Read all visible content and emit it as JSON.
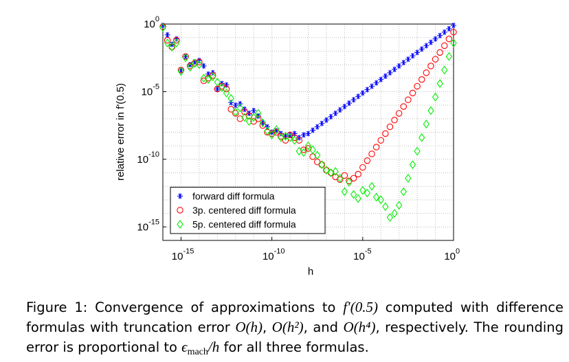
{
  "chart_data": {
    "type": "scatter",
    "xlabel": "h",
    "ylabel": "relative error in f'(0.5)",
    "xscale": "log",
    "yscale": "log",
    "grid": true,
    "legend": "lower left",
    "xlim": [
      1e-16,
      1
    ],
    "ylim": [
      1e-16,
      1
    ],
    "xticks": [
      {
        "value": 1e-15,
        "label": "10",
        "exponent": "-15"
      },
      {
        "value": 1e-10,
        "label": "10",
        "exponent": "-10"
      },
      {
        "value": 1e-05,
        "label": "10",
        "exponent": "-5"
      },
      {
        "value": 1,
        "label": "10",
        "exponent": "0"
      }
    ],
    "yticks": [
      {
        "value": 1e-15,
        "label": "10",
        "exponent": "-15"
      },
      {
        "value": 1e-10,
        "label": "10",
        "exponent": "-10"
      },
      {
        "value": 1e-05,
        "label": "10",
        "exponent": "-5"
      },
      {
        "value": 1,
        "label": "10",
        "exponent": "0"
      }
    ],
    "xgrid": [
      1e-16,
      1e-15,
      1e-14,
      1e-13,
      1e-12,
      1e-11,
      1e-10,
      1e-09,
      1e-08,
      1e-07,
      1e-06,
      1e-05,
      0.0001,
      0.001,
      0.01,
      0.1
    ],
    "ygrid": [
      1e-15,
      1e-14,
      1e-13,
      1e-12,
      1e-11,
      1e-10,
      1e-09,
      1e-08,
      1e-07,
      1e-06,
      1e-05,
      0.0001,
      0.001,
      0.01,
      0.1
    ],
    "x": [
      1e-16,
      1.778e-16,
      3.162e-16,
      5.623e-16,
      1e-15,
      1.778e-15,
      3.162e-15,
      5.623e-15,
      1e-14,
      1.778e-14,
      3.162e-14,
      5.623e-14,
      1e-13,
      1.778e-13,
      3.162e-13,
      5.623e-13,
      1e-12,
      1.778e-12,
      3.162e-12,
      5.623e-12,
      1e-11,
      1.778e-11,
      3.162e-11,
      5.623e-11,
      1e-10,
      1.778e-10,
      3.162e-10,
      5.623e-10,
      1e-09,
      1.778e-09,
      3.162e-09,
      5.623e-09,
      1e-08,
      1.778e-08,
      3.162e-08,
      5.623e-08,
      1e-07,
      1.778e-07,
      3.162e-07,
      5.623e-07,
      1e-06,
      1.778e-06,
      3.162e-06,
      5.623e-06,
      1e-05,
      1.778e-05,
      3.162e-05,
      5.623e-05,
      0.0001,
      0.0001778,
      0.0003162,
      0.0005623,
      0.001,
      0.001778,
      0.003162,
      0.005623,
      0.01,
      0.01778,
      0.03162,
      0.05623,
      0.1,
      0.1778,
      0.3162,
      0.5623,
      1
    ],
    "series": [
      {
        "name": "forward diff formula",
        "color": "#0000ff",
        "marker": "asterisk",
        "values": [
          0.794,
          0.158,
          0.0316,
          0.0794,
          0.000398,
          0.00398,
          0.001,
          0.00158,
          0.002,
          0.000794,
          0.0002,
          0.000251,
          1.58e-05,
          3.98e-05,
          3.16e-05,
          1.58e-06,
          1e-06,
          1.26e-06,
          5.01e-07,
          2.51e-07,
          3.98e-07,
          1.58e-07,
          5.01e-08,
          2.51e-08,
          1e-08,
          1.26e-08,
          7.94e-09,
          5.01e-09,
          6.31e-09,
          7.94e-09,
          3.98e-09,
          6.31e-09,
          7.94e-09,
          1.41e-08,
          2.51e-08,
          4.47e-08,
          7.94e-08,
          1.41e-07,
          2.51e-07,
          4.47e-07,
          7.94e-07,
          1.41e-06,
          2.51e-06,
          4.47e-06,
          7.94e-06,
          1.41e-05,
          2.51e-05,
          4.47e-05,
          7.94e-05,
          0.000141,
          0.000251,
          0.000447,
          0.000794,
          0.00141,
          0.00251,
          0.00447,
          0.00794,
          0.0141,
          0.0251,
          0.0447,
          0.0794,
          0.141,
          0.251,
          0.447,
          0.794
        ]
      },
      {
        "name": "3p. centered diff formula",
        "color": "#ff0000",
        "marker": "circle",
        "values": [
          0.631,
          0.0631,
          0.02,
          0.0631,
          0.000398,
          0.00398,
          0.000794,
          0.00126,
          0.00158,
          6.31e-05,
          0.0001,
          0.000158,
          1.58e-05,
          2.51e-05,
          1.58e-05,
          5.01e-07,
          2.51e-07,
          1e-07,
          3.16e-07,
          1.58e-07,
          6.31e-08,
          1e-07,
          3.16e-08,
          1e-08,
          7.94e-09,
          1e-08,
          5.01e-09,
          2.51e-09,
          6.31e-09,
          3.98e-09,
          2.51e-09,
          5.01e-10,
          6.31e-10,
          1.58e-10,
          6.31e-11,
          3.98e-11,
          1.58e-11,
          1e-11,
          5.01e-12,
          3.16e-12,
          6.31e-12,
          2.51e-12,
          3.98e-12,
          7.94e-12,
          2.51e-11,
          7.94e-11,
          2.51e-10,
          7.94e-10,
          2.51e-09,
          7.94e-09,
          2.51e-08,
          7.94e-08,
          2.51e-07,
          7.94e-07,
          2.51e-06,
          7.94e-06,
          2.51e-05,
          7.94e-05,
          0.000251,
          0.000794,
          0.00251,
          0.00794,
          0.0251,
          0.0794,
          0.251
        ]
      },
      {
        "name": "5p. centered diff formula",
        "color": "#00ee00",
        "marker": "diamond",
        "values": [
          0.562,
          0.0398,
          0.02,
          0.0398,
          0.000316,
          0.00316,
          0.000631,
          0.00126,
          0.001,
          0.0001,
          7.94e-05,
          0.000126,
          5.01e-05,
          2e-05,
          7.94e-06,
          3.16e-06,
          3.16e-07,
          6.31e-07,
          1.26e-07,
          6.31e-08,
          1.26e-07,
          2.51e-07,
          5.01e-08,
          1.26e-08,
          6.31e-09,
          1.58e-08,
          3.98e-09,
          5.01e-09,
          3.98e-09,
          2.51e-09,
          3.98e-10,
          3.16e-10,
          1e-09,
          5.01e-10,
          2e-10,
          3.98e-11,
          1.58e-11,
          1e-11,
          1.26e-11,
          3.98e-12,
          3.98e-13,
          2e-12,
          2.51e-13,
          1.26e-13,
          5.01e-13,
          3.16e-13,
          1e-12,
          1.58e-13,
          1e-13,
          3.16e-14,
          5.01e-15,
          1e-14,
          3.98e-14,
          3.98e-13,
          3.98e-12,
          3.98e-11,
          3.98e-10,
          3.98e-09,
          3.98e-08,
          3.98e-07,
          3.98e-06,
          3.98e-05,
          0.000398,
          0.00398,
          0.0398
        ]
      }
    ]
  },
  "caption": [
    {
      "text": "Figure 1: Convergence of approximations to ",
      "style": "plain"
    },
    {
      "text": "f′(0.5)",
      "style": "math"
    },
    {
      "text": " computed with difference formulas with truncation error ",
      "style": "plain"
    },
    {
      "text": "O(h)",
      "style": "math"
    },
    {
      "text": ", ",
      "style": "plain"
    },
    {
      "text": "O(h²)",
      "style": "math"
    },
    {
      "text": ", and ",
      "style": "plain"
    },
    {
      "text": "O(h⁴)",
      "style": "math"
    },
    {
      "text": ", respectively. The rounding error is proportional to ",
      "style": "plain"
    },
    {
      "text": "ϵ",
      "style": "math"
    },
    {
      "text": "mach",
      "style": "sub"
    },
    {
      "text": "/h",
      "style": "math"
    },
    {
      "text": " for all three formulas.",
      "style": "plain"
    }
  ]
}
